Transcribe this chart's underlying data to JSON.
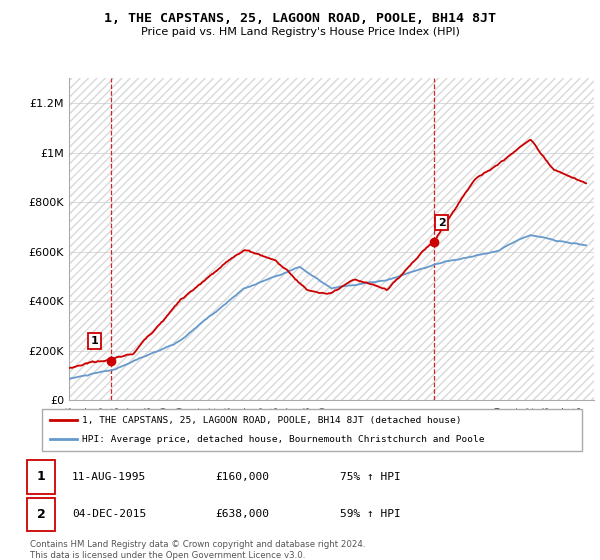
{
  "title": "1, THE CAPSTANS, 25, LAGOON ROAD, POOLE, BH14 8JT",
  "subtitle": "Price paid vs. HM Land Registry's House Price Index (HPI)",
  "ylabel_ticks": [
    "£0",
    "£200K",
    "£400K",
    "£600K",
    "£800K",
    "£1M",
    "£1.2M"
  ],
  "ytick_vals": [
    0,
    200000,
    400000,
    600000,
    800000,
    1000000,
    1200000
  ],
  "ylim": [
    0,
    1300000
  ],
  "xlim_start": 1993,
  "xlim_end": 2026,
  "sale1_x": 1995.62,
  "sale1_y": 160000,
  "sale1_label": "1",
  "sale2_x": 2015.92,
  "sale2_y": 638000,
  "sale2_label": "2",
  "sale_color": "#cc0000",
  "hpi_color": "#6699cc",
  "legend_line1": "1, THE CAPSTANS, 25, LAGOON ROAD, POOLE, BH14 8JT (detached house)",
  "legend_line2": "HPI: Average price, detached house, Bournemouth Christchurch and Poole",
  "copyright": "Contains HM Land Registry data © Crown copyright and database right 2024.\nThis data is licensed under the Open Government Licence v3.0.",
  "grid_color": "#cccccc",
  "hatch_edge_color": "#cccccc"
}
